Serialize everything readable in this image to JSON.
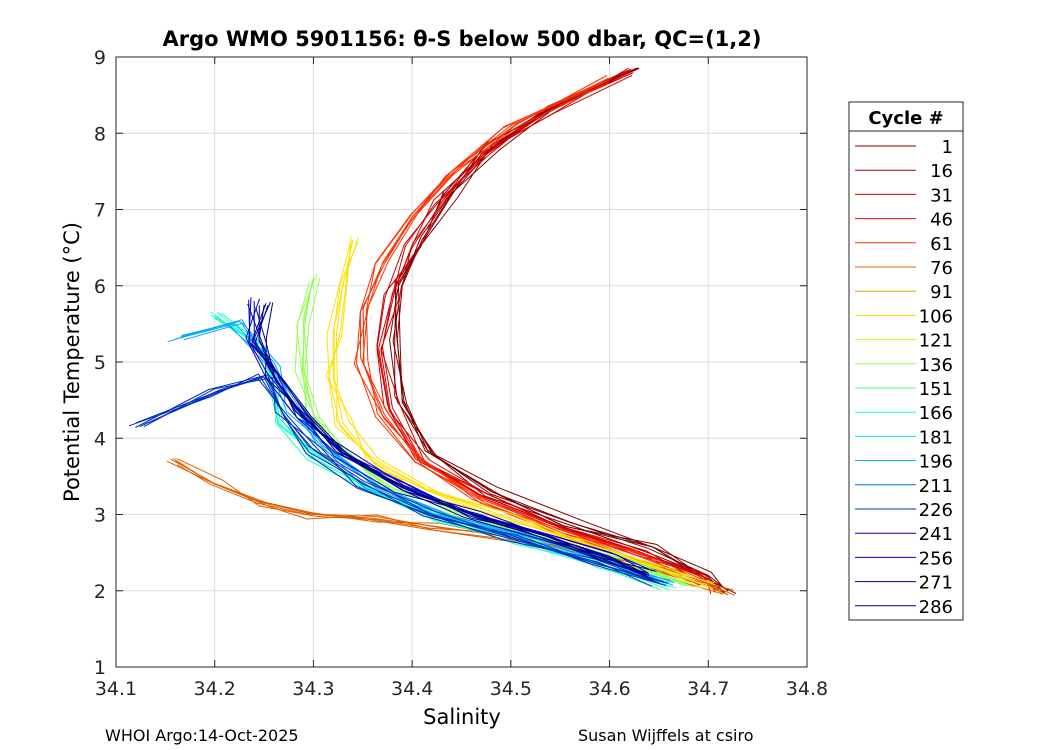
{
  "chart_data": {
    "type": "line",
    "title": "Argo WMO 5901156: θ-S below 500 dbar,  QC=(1,2)",
    "xlabel": "Salinity",
    "ylabel": "Potential Temperature (°C)",
    "xlim": [
      34.1,
      34.8
    ],
    "ylim": [
      1,
      9
    ],
    "xticks": [
      "34.1",
      "34.2",
      "34.3",
      "34.4",
      "34.5",
      "34.6",
      "34.7",
      "34.8"
    ],
    "yticks": [
      "1",
      "2",
      "3",
      "4",
      "5",
      "6",
      "7",
      "8",
      "9"
    ],
    "grid": true,
    "legend_title": "Cycle #",
    "legend_position": "right",
    "legend": [
      "1",
      "16",
      "31",
      "46",
      "61",
      "76",
      "91",
      "106",
      "121",
      "136",
      "151",
      "166",
      "181",
      "196",
      "211",
      "226",
      "241",
      "256",
      "271",
      "286"
    ],
    "colors": [
      "#7f0000",
      "#a80000",
      "#d10000",
      "#f00000",
      "#ff3000",
      "#e06000",
      "#e0a000",
      "#ffe000",
      "#c8ff20",
      "#90ff50",
      "#50ff90",
      "#20ffc8",
      "#00e0ff",
      "#00a8ff",
      "#0070e0",
      "#0030c0",
      "#0000b0",
      "#0000c8",
      "#000090",
      "#00008f"
    ],
    "series": [
      {
        "name": "1",
        "salinity": [
          34.63,
          34.55,
          34.48,
          34.44,
          34.41,
          34.39,
          34.385,
          34.39,
          34.42,
          34.48,
          34.56,
          34.64,
          34.7,
          34.72
        ],
        "theta": [
          8.85,
          8.4,
          7.8,
          7.2,
          6.6,
          6.0,
          5.3,
          4.5,
          3.8,
          3.3,
          2.9,
          2.55,
          2.2,
          2.0
        ]
      },
      {
        "name": "31",
        "salinity": [
          34.62,
          34.54,
          34.47,
          34.43,
          34.4,
          34.38,
          34.37,
          34.38,
          34.41,
          34.47,
          34.55,
          34.63,
          34.69,
          34.71
        ],
        "theta": [
          8.8,
          8.3,
          7.7,
          7.1,
          6.5,
          5.9,
          5.2,
          4.4,
          3.7,
          3.25,
          2.85,
          2.5,
          2.2,
          2.0
        ]
      },
      {
        "name": "61",
        "salinity": [
          34.6,
          34.5,
          34.44,
          34.4,
          34.37,
          34.355,
          34.35,
          34.37,
          34.41,
          34.47,
          34.55,
          34.63,
          34.7
        ],
        "theta": [
          8.7,
          8.1,
          7.5,
          6.9,
          6.3,
          5.7,
          5.0,
          4.3,
          3.7,
          3.2,
          2.8,
          2.45,
          2.1
        ]
      },
      {
        "name": "76",
        "salinity": [
          34.16,
          34.2,
          34.25,
          34.3,
          34.36,
          34.42,
          34.5,
          34.58,
          34.66,
          34.72
        ],
        "theta": [
          3.7,
          3.4,
          3.15,
          3.0,
          2.95,
          2.85,
          2.7,
          2.5,
          2.25,
          1.95
        ]
      },
      {
        "name": "106",
        "salinity": [
          34.34,
          34.33,
          34.32,
          34.32,
          34.33,
          34.36,
          34.42,
          34.5,
          34.58,
          34.65,
          34.7
        ],
        "theta": [
          6.6,
          6.0,
          5.4,
          4.8,
          4.2,
          3.7,
          3.3,
          2.95,
          2.6,
          2.3,
          2.05
        ]
      },
      {
        "name": "136",
        "salinity": [
          34.3,
          34.29,
          34.29,
          34.3,
          34.33,
          34.38,
          34.46,
          34.54,
          34.62,
          34.68
        ],
        "theta": [
          6.1,
          5.5,
          4.9,
          4.3,
          3.8,
          3.35,
          2.95,
          2.65,
          2.35,
          2.1
        ]
      },
      {
        "name": "166",
        "salinity": [
          34.2,
          34.25,
          34.26,
          34.27,
          34.3,
          34.36,
          34.43,
          34.51,
          34.59,
          34.66
        ],
        "theta": [
          5.6,
          5.2,
          4.7,
          4.2,
          3.75,
          3.3,
          2.95,
          2.65,
          2.35,
          2.05
        ]
      },
      {
        "name": "196",
        "salinity": [
          34.16,
          34.22,
          34.26,
          34.28,
          34.31,
          34.36,
          34.43,
          34.51,
          34.59,
          34.66
        ],
        "theta": [
          5.3,
          5.5,
          5.0,
          4.4,
          3.9,
          3.4,
          3.0,
          2.7,
          2.4,
          2.1
        ]
      },
      {
        "name": "226",
        "salinity": [
          34.12,
          34.2,
          34.25,
          34.27,
          34.3,
          34.35,
          34.42,
          34.5,
          34.58,
          34.65
        ],
        "theta": [
          4.2,
          4.6,
          4.8,
          4.3,
          3.85,
          3.4,
          3.0,
          2.7,
          2.4,
          2.1
        ]
      },
      {
        "name": "256",
        "salinity": [
          34.24,
          34.24,
          34.26,
          34.29,
          34.33,
          34.39,
          34.46,
          34.54,
          34.6,
          34.64
        ],
        "theta": [
          5.8,
          5.3,
          4.8,
          4.3,
          3.8,
          3.35,
          3.0,
          2.7,
          2.45,
          2.2
        ]
      },
      {
        "name": "286",
        "salinity": [
          34.25,
          34.245,
          34.26,
          34.29,
          34.33,
          34.39,
          34.46,
          34.54,
          34.6,
          34.64
        ],
        "theta": [
          5.75,
          5.3,
          4.8,
          4.3,
          3.8,
          3.35,
          3.0,
          2.7,
          2.45,
          2.2
        ]
      }
    ]
  },
  "footer": {
    "left": "WHOI Argo:14-Oct-2025",
    "right": "Susan Wijffels at csiro"
  }
}
